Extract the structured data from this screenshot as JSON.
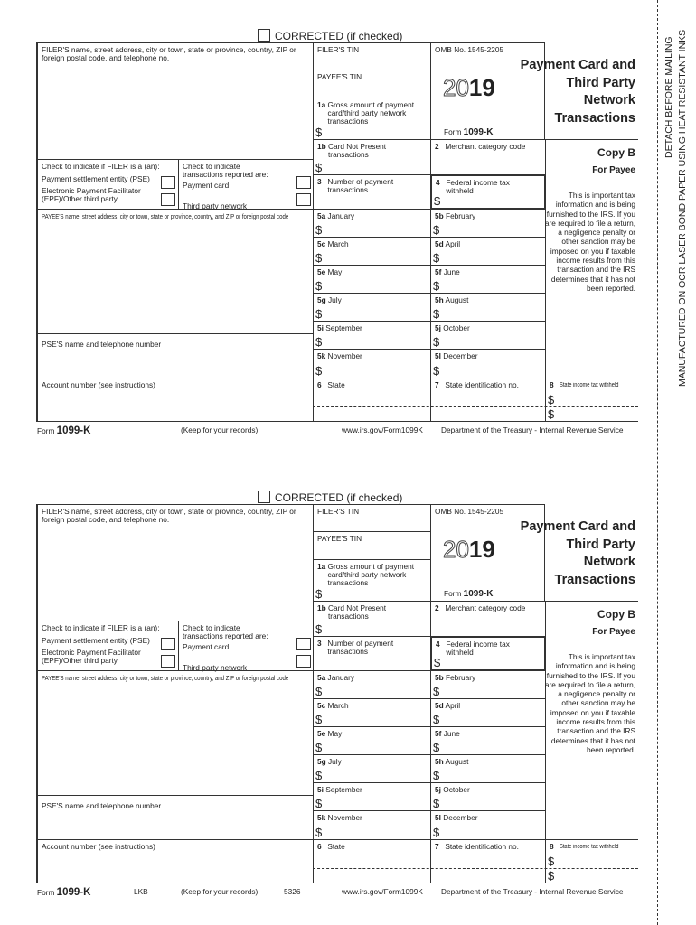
{
  "corrected_label": "CORRECTED (if checked)",
  "filer_block": "FILER'S name, street address, city or town, state or province, country, ZIP or foreign postal code, and telephone no.",
  "filer_tin": "FILER'S TIN",
  "payee_tin": "PAYEE'S TIN",
  "omb": "OMB No. 1545-2205",
  "year_outline": "20",
  "year_bold": "19",
  "form_word": "Form",
  "form_number": "1099-K",
  "title_lines": [
    "Payment Card and",
    "Third Party",
    "Network",
    "Transactions"
  ],
  "box1a": {
    "num": "1a",
    "label": "Gross amount of payment card/third party network transactions"
  },
  "box1b": {
    "num": "1b",
    "label": "Card Not Present transactions"
  },
  "box2": {
    "num": "2",
    "label": "Merchant category code"
  },
  "box3": {
    "num": "3",
    "label": "Number of payment transactions"
  },
  "box4": {
    "num": "4",
    "label": "Federal income tax withheld"
  },
  "filer_check": {
    "heading": "Check to indicate if FILER is a (an):",
    "pse": "Payment settlement entity (PSE)",
    "epf": "Electronic Payment Facilitator (EPF)/Other third party"
  },
  "trans_check": {
    "heading": "Check to indicate transactions reported are:",
    "card": "Payment card",
    "network": "Third party network"
  },
  "payee_block": "PAYEE'S name, street address, city or town, state or province, country, and ZIP or foreign postal code",
  "pse_block": "PSE'S name and telephone number",
  "account_block": "Account number (see instructions)",
  "months": [
    {
      "num": "5a",
      "label": "January"
    },
    {
      "num": "5b",
      "label": "February"
    },
    {
      "num": "5c",
      "label": "March"
    },
    {
      "num": "5d",
      "label": "April"
    },
    {
      "num": "5e",
      "label": "May"
    },
    {
      "num": "5f",
      "label": "June"
    },
    {
      "num": "5g",
      "label": "July"
    },
    {
      "num": "5h",
      "label": "August"
    },
    {
      "num": "5i",
      "label": "September"
    },
    {
      "num": "5j",
      "label": "October"
    },
    {
      "num": "5k",
      "label": "November"
    },
    {
      "num": "5l",
      "label": "December"
    }
  ],
  "box6": {
    "num": "6",
    "label": "State"
  },
  "box7": {
    "num": "7",
    "label": "State identification no."
  },
  "box8": {
    "num": "8",
    "label": "State income tax withheld"
  },
  "dollar": "$",
  "copy": "Copy B",
  "for_payee": "For Payee",
  "notice": "This is important tax information and is being furnished to the IRS. If you are required to file a return, a negligence penalty or other sanction may be imposed on you if taxable income results from this transaction and the IRS determines that it has not been reported.",
  "footer": {
    "keep": "(Keep for your records)",
    "url": "www.irs.gov/Form1099K",
    "dept": "Department of the Treasury - Internal Revenue Service",
    "lkb": "LKB",
    "code": "5326"
  },
  "side_text": {
    "line1": "DETACH BEFORE MAILING",
    "line2": "MANUFACTURED ON OCR LASER BOND PAPER USING HEAT RESISTANT INKS"
  }
}
